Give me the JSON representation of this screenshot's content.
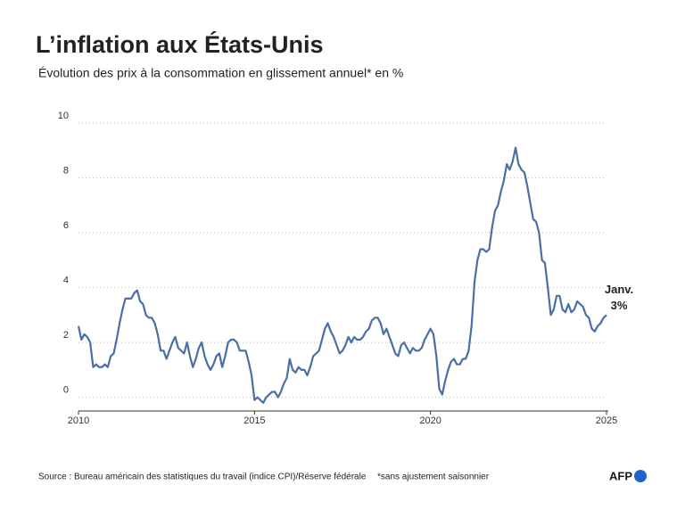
{
  "chart_data": {
    "type": "line",
    "title": "L’inflation aux États-Unis",
    "subtitle": "Évolution des prix à la consommation en glissement annuel* en %",
    "annotation": [
      "Janv.",
      "3%"
    ],
    "source": "Source : Bureau américain des statistiques du travail (indice CPI)/Réserve fédérale",
    "note": "*sans ajustement saisonnier",
    "logo": "AFP",
    "color": "#4a6fa5",
    "grid": true,
    "xlim": [
      2010,
      2025
    ],
    "xticks": [
      2010,
      2015,
      2020,
      2025
    ],
    "ylim": [
      -0.5,
      10
    ],
    "yticks": [
      0,
      2,
      4,
      6,
      8,
      10
    ],
    "x": [
      2010,
      2010.083,
      2010.167,
      2010.25,
      2010.333,
      2010.417,
      2010.5,
      2010.583,
      2010.667,
      2010.75,
      2010.833,
      2010.917,
      2011,
      2011.083,
      2011.167,
      2011.25,
      2011.333,
      2011.417,
      2011.5,
      2011.583,
      2011.667,
      2011.75,
      2011.833,
      2011.917,
      2012,
      2012.083,
      2012.167,
      2012.25,
      2012.333,
      2012.417,
      2012.5,
      2012.583,
      2012.667,
      2012.75,
      2012.833,
      2012.917,
      2013,
      2013.083,
      2013.167,
      2013.25,
      2013.333,
      2013.417,
      2013.5,
      2013.583,
      2013.667,
      2013.75,
      2013.833,
      2013.917,
      2014,
      2014.083,
      2014.167,
      2014.25,
      2014.333,
      2014.417,
      2014.5,
      2014.583,
      2014.667,
      2014.75,
      2014.833,
      2014.917,
      2015,
      2015.083,
      2015.167,
      2015.25,
      2015.333,
      2015.417,
      2015.5,
      2015.583,
      2015.667,
      2015.75,
      2015.833,
      2015.917,
      2016,
      2016.083,
      2016.167,
      2016.25,
      2016.333,
      2016.417,
      2016.5,
      2016.583,
      2016.667,
      2016.75,
      2016.833,
      2016.917,
      2017,
      2017.083,
      2017.167,
      2017.25,
      2017.333,
      2017.417,
      2017.5,
      2017.583,
      2017.667,
      2017.75,
      2017.833,
      2017.917,
      2018,
      2018.083,
      2018.167,
      2018.25,
      2018.333,
      2018.417,
      2018.5,
      2018.583,
      2018.667,
      2018.75,
      2018.833,
      2018.917,
      2019,
      2019.083,
      2019.167,
      2019.25,
      2019.333,
      2019.417,
      2019.5,
      2019.583,
      2019.667,
      2019.75,
      2019.833,
      2019.917,
      2020,
      2020.083,
      2020.167,
      2020.25,
      2020.333,
      2020.417,
      2020.5,
      2020.583,
      2020.667,
      2020.75,
      2020.833,
      2020.917,
      2021,
      2021.083,
      2021.167,
      2021.25,
      2021.333,
      2021.417,
      2021.5,
      2021.583,
      2021.667,
      2021.75,
      2021.833,
      2021.917,
      2022,
      2022.083,
      2022.167,
      2022.25,
      2022.333,
      2022.417,
      2022.5,
      2022.583,
      2022.667,
      2022.75,
      2022.833,
      2022.917,
      2023,
      2023.083,
      2023.167,
      2023.25,
      2023.333,
      2023.417,
      2023.5,
      2023.583,
      2023.667,
      2023.75,
      2023.833,
      2023.917,
      2024,
      2024.083,
      2024.167,
      2024.25,
      2024.333,
      2024.417,
      2024.5,
      2024.583,
      2024.667,
      2024.75,
      2024.833,
      2024.917,
      2025
    ],
    "values": [
      2.6,
      2.1,
      2.3,
      2.2,
      2.0,
      1.1,
      1.2,
      1.1,
      1.1,
      1.2,
      1.1,
      1.5,
      1.6,
      2.1,
      2.7,
      3.2,
      3.6,
      3.6,
      3.6,
      3.8,
      3.9,
      3.5,
      3.4,
      3.0,
      2.9,
      2.9,
      2.7,
      2.3,
      1.7,
      1.7,
      1.4,
      1.7,
      2.0,
      2.2,
      1.8,
      1.7,
      1.6,
      2.0,
      1.5,
      1.1,
      1.4,
      1.8,
      2.0,
      1.5,
      1.2,
      1.0,
      1.2,
      1.5,
      1.6,
      1.1,
      1.5,
      2.0,
      2.1,
      2.1,
      2.0,
      1.7,
      1.7,
      1.7,
      1.3,
      0.8,
      -0.1,
      0.0,
      -0.1,
      -0.2,
      0.0,
      0.1,
      0.2,
      0.2,
      0.0,
      0.2,
      0.5,
      0.7,
      1.4,
      1.0,
      0.9,
      1.1,
      1.0,
      1.0,
      0.8,
      1.1,
      1.5,
      1.6,
      1.7,
      2.1,
      2.5,
      2.7,
      2.4,
      2.2,
      1.9,
      1.6,
      1.7,
      1.9,
      2.2,
      2.0,
      2.2,
      2.1,
      2.1,
      2.2,
      2.4,
      2.5,
      2.8,
      2.9,
      2.9,
      2.7,
      2.3,
      2.5,
      2.2,
      1.9,
      1.6,
      1.5,
      1.9,
      2.0,
      1.8,
      1.6,
      1.8,
      1.7,
      1.7,
      1.8,
      2.1,
      2.3,
      2.5,
      2.3,
      1.5,
      0.3,
      0.1,
      0.6,
      1.0,
      1.3,
      1.4,
      1.2,
      1.2,
      1.4,
      1.4,
      1.7,
      2.6,
      4.2,
      5.0,
      5.4,
      5.4,
      5.3,
      5.4,
      6.2,
      6.8,
      7.0,
      7.5,
      7.9,
      8.5,
      8.3,
      8.6,
      9.1,
      8.5,
      8.3,
      8.2,
      7.7,
      7.1,
      6.5,
      6.4,
      6.0,
      5.0,
      4.9,
      4.0,
      3.0,
      3.2,
      3.7,
      3.7,
      3.2,
      3.1,
      3.4,
      3.1,
      3.2,
      3.5,
      3.4,
      3.3,
      3.0,
      2.9,
      2.5,
      2.4,
      2.6,
      2.7,
      2.9,
      3.0
    ]
  }
}
